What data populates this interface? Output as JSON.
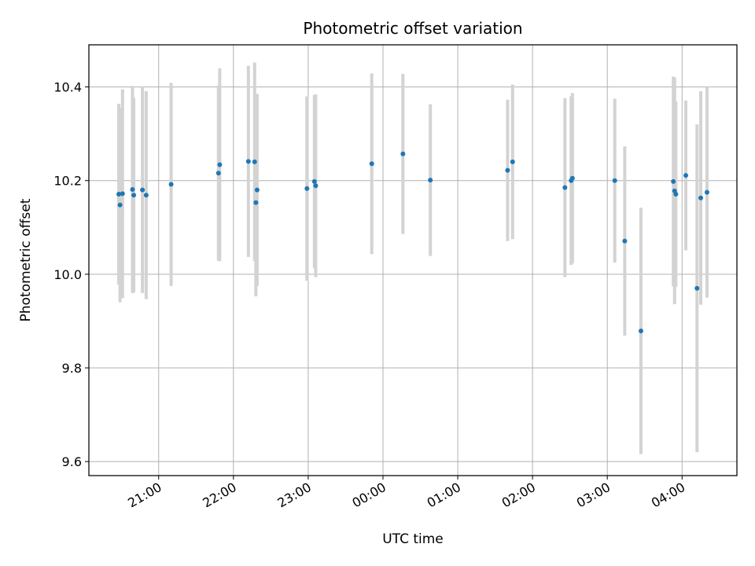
{
  "chart_data": {
    "type": "scatter",
    "title": "Photometric offset variation",
    "xlabel": "UTC time",
    "ylabel": "Photometric offset",
    "x_ticks": [
      "21:00",
      "22:00",
      "23:00",
      "00:00",
      "01:00",
      "02:00",
      "03:00",
      "04:00"
    ],
    "y_ticks": [
      "9.6",
      "9.8",
      "10.0",
      "10.2",
      "10.4"
    ],
    "xlim": [
      "2023-01-01T20:04",
      "2023-01-02T04:44"
    ],
    "ylim": [
      9.57,
      10.49
    ],
    "grid": true,
    "colors": {
      "point": "#1f77b4",
      "errorbar": "#d3d3d3",
      "grid": "#b0b0b0"
    },
    "points": [
      {
        "x": "2023-01-01T20:28",
        "y": 10.171,
        "yerr": 0.193
      },
      {
        "x": "2023-01-01T20:29",
        "y": 10.148,
        "yerr": 0.208
      },
      {
        "x": "2023-01-01T20:31",
        "y": 10.172,
        "yerr": 0.223
      },
      {
        "x": "2023-01-01T20:39",
        "y": 10.181,
        "yerr": 0.221
      },
      {
        "x": "2023-01-01T20:40",
        "y": 10.169,
        "yerr": 0.208
      },
      {
        "x": "2023-01-01T20:47",
        "y": 10.18,
        "yerr": 0.22
      },
      {
        "x": "2023-01-01T20:50",
        "y": 10.169,
        "yerr": 0.222
      },
      {
        "x": "2023-01-01T21:10",
        "y": 10.192,
        "yerr": 0.217
      },
      {
        "x": "2023-01-01T21:48",
        "y": 10.216,
        "yerr": 0.187
      },
      {
        "x": "2023-01-01T21:49",
        "y": 10.234,
        "yerr": 0.206
      },
      {
        "x": "2023-01-01T22:12",
        "y": 10.241,
        "yerr": 0.204
      },
      {
        "x": "2023-01-01T22:17",
        "y": 10.24,
        "yerr": 0.212
      },
      {
        "x": "2023-01-01T22:18",
        "y": 10.153,
        "yerr": 0.2
      },
      {
        "x": "2023-01-01T22:19",
        "y": 10.18,
        "yerr": 0.205
      },
      {
        "x": "2023-01-01T22:59",
        "y": 10.183,
        "yerr": 0.197
      },
      {
        "x": "2023-01-01T23:05",
        "y": 10.198,
        "yerr": 0.185
      },
      {
        "x": "2023-01-01T23:06",
        "y": 10.189,
        "yerr": 0.195
      },
      {
        "x": "2023-01-01T23:51",
        "y": 10.236,
        "yerr": 0.193
      },
      {
        "x": "2023-01-02T00:16",
        "y": 10.257,
        "yerr": 0.171
      },
      {
        "x": "2023-01-02T00:38",
        "y": 10.201,
        "yerr": 0.162
      },
      {
        "x": "2023-01-02T01:40",
        "y": 10.222,
        "yerr": 0.151
      },
      {
        "x": "2023-01-02T01:44",
        "y": 10.24,
        "yerr": 0.165
      },
      {
        "x": "2023-01-02T02:26",
        "y": 10.185,
        "yerr": 0.191
      },
      {
        "x": "2023-01-02T02:31",
        "y": 10.2,
        "yerr": 0.18
      },
      {
        "x": "2023-01-02T02:32",
        "y": 10.205,
        "yerr": 0.182
      },
      {
        "x": "2023-01-02T03:06",
        "y": 10.2,
        "yerr": 0.175
      },
      {
        "x": "2023-01-02T03:14",
        "y": 10.071,
        "yerr": 0.202
      },
      {
        "x": "2023-01-02T03:27",
        "y": 9.879,
        "yerr": 0.263
      },
      {
        "x": "2023-01-02T03:53",
        "y": 10.198,
        "yerr": 0.224
      },
      {
        "x": "2023-01-02T03:54",
        "y": 10.178,
        "yerr": 0.242
      },
      {
        "x": "2023-01-02T03:55",
        "y": 10.171,
        "yerr": 0.198
      },
      {
        "x": "2023-01-02T04:03",
        "y": 10.211,
        "yerr": 0.16
      },
      {
        "x": "2023-01-02T04:12",
        "y": 9.97,
        "yerr": 0.35
      },
      {
        "x": "2023-01-02T04:15",
        "y": 10.163,
        "yerr": 0.228
      },
      {
        "x": "2023-01-02T04:20",
        "y": 10.175,
        "yerr": 0.225
      }
    ]
  }
}
